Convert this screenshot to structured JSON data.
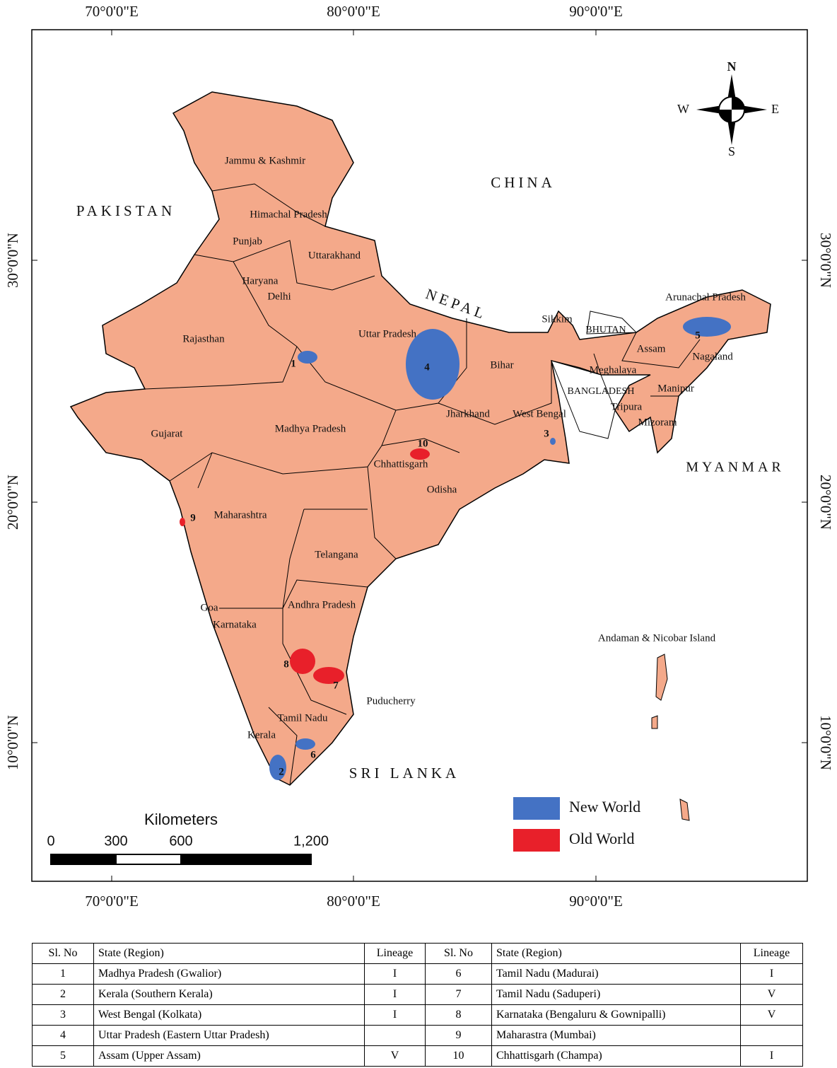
{
  "map": {
    "lon_labels": [
      "70°0'0\"E",
      "80°0'0\"E",
      "90°0'0\"E"
    ],
    "lat_labels": [
      "30°0'0\"N",
      "20°0'0\"N",
      "10°0'0\"N"
    ],
    "compass": {
      "n": "N",
      "e": "E",
      "s": "S",
      "w": "W"
    },
    "countries": [
      "PAKISTAN",
      "CHINA",
      "NEPAL",
      "BHUTAN",
      "BANGLADESH",
      "MYANMAR",
      "SRI LANKA"
    ],
    "states": [
      "Jammu & Kashmir",
      "Himachal Pradesh",
      "Punjab",
      "Uttarakhand",
      "Haryana",
      "Delhi",
      "Rajasthan",
      "Uttar Pradesh",
      "Bihar",
      "Sikkim",
      "Arunachal Pradesh",
      "Assam",
      "Nagaland",
      "Meghalaya",
      "Manipur",
      "Tripura",
      "Mizoram",
      "Jharkhand",
      "West Bengal",
      "Gujarat",
      "Madhya Pradesh",
      "Chhattisgarh",
      "Odisha",
      "Maharashtra",
      "Telangana",
      "Andhra Pradesh",
      "Goa",
      "Karnataka",
      "Puducherry",
      "Tamil Nadu",
      "Kerala",
      "Andaman & Nicobar Island"
    ],
    "legend": [
      {
        "label": "New World",
        "color": "#4472c4",
        "sites": [
          "1",
          "2",
          "3",
          "4",
          "5",
          "6"
        ]
      },
      {
        "label": "Old World",
        "color": "#e8202a",
        "sites": [
          "7",
          "8",
          "9",
          "10"
        ]
      }
    ],
    "scale_bar": {
      "title": "Kilometers",
      "ticks": [
        0,
        300,
        600,
        {
          "value": 1200,
          "label": "1,200"
        }
      ]
    }
  },
  "table": {
    "header": [
      "Sl. No",
      "State (Region)",
      "Lineage",
      "Sl. No",
      "State (Region)",
      "Lineage"
    ],
    "rows": [
      [
        1,
        "Madhya Pradesh (Gwalior)",
        "I",
        6,
        "Tamil Nadu (Madurai)",
        "I"
      ],
      [
        2,
        "Kerala (Southern Kerala)",
        "I",
        7,
        "Tamil Nadu (Saduperi)",
        "V"
      ],
      [
        3,
        "West Bengal (Kolkata)",
        "I",
        8,
        "Karnataka (Bengaluru & Gownipalli)",
        "V"
      ],
      [
        4,
        "Uttar Pradesh (Eastern Uttar Pradesh)",
        null,
        9,
        "Maharastra (Mumbai)",
        null
      ],
      [
        5,
        "Assam (Upper Assam)",
        "V",
        10,
        "Chhattisgarh (Champa)",
        "I"
      ]
    ]
  }
}
